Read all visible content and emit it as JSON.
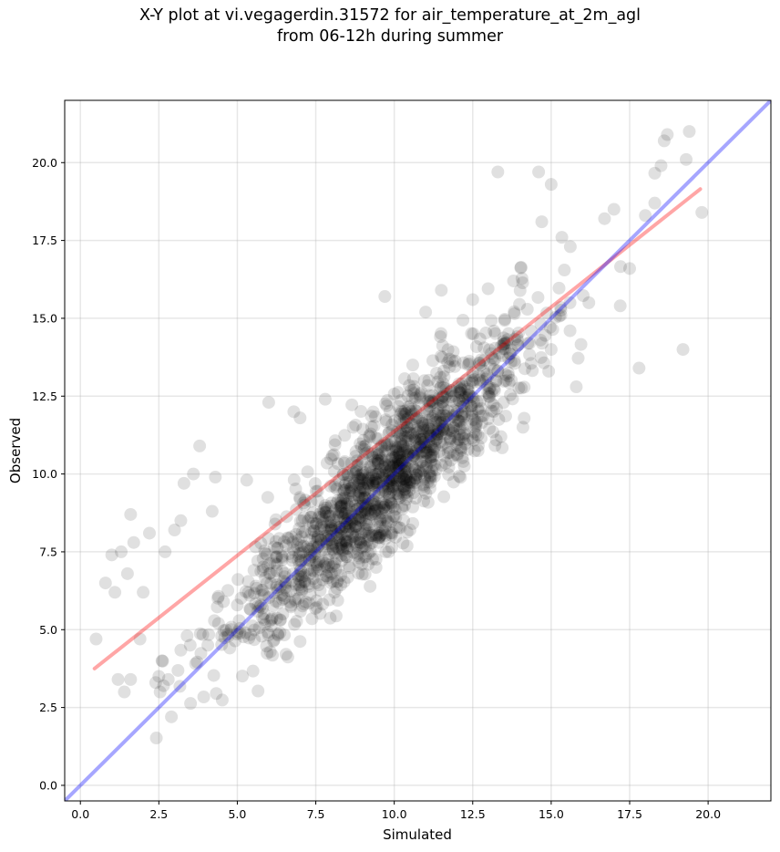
{
  "chart_data": {
    "type": "scatter",
    "title": "X-Y plot at vi.vegagerdin.31572 for air_temperature_at_2m_agl",
    "subtitle": "from 06-12h during summer",
    "xlabel": "Simulated",
    "ylabel": "Observed",
    "xlim": [
      -0.5,
      22
    ],
    "ylim": [
      -0.5,
      22
    ],
    "xticks": [
      "0.0",
      "2.5",
      "5.0",
      "7.5",
      "10.0",
      "12.5",
      "15.0",
      "17.5",
      "20.0"
    ],
    "yticks": [
      "0.0",
      "2.5",
      "5.0",
      "7.5",
      "10.0",
      "12.5",
      "15.0",
      "17.5",
      "20.0"
    ],
    "grid": true,
    "points_color": "#000000",
    "points_alpha": 0.12,
    "points_visible_sample": [
      [
        0.5,
        4.7
      ],
      [
        0.8,
        6.5
      ],
      [
        1.0,
        7.4
      ],
      [
        1.1,
        6.2
      ],
      [
        1.2,
        3.4
      ],
      [
        1.3,
        7.5
      ],
      [
        1.4,
        3.0
      ],
      [
        1.5,
        6.8
      ],
      [
        1.6,
        3.4
      ],
      [
        1.6,
        8.7
      ],
      [
        1.7,
        7.8
      ],
      [
        1.9,
        4.7
      ],
      [
        2.0,
        6.2
      ],
      [
        2.2,
        8.1
      ],
      [
        2.4,
        3.3
      ],
      [
        2.5,
        3.5
      ],
      [
        2.6,
        4.0
      ],
      [
        2.7,
        7.5
      ],
      [
        2.8,
        3.4
      ],
      [
        2.9,
        2.2
      ],
      [
        3.0,
        8.2
      ],
      [
        3.2,
        8.5
      ],
      [
        3.3,
        9.7
      ],
      [
        3.4,
        4.8
      ],
      [
        3.5,
        4.5
      ],
      [
        3.6,
        10.0
      ],
      [
        3.8,
        10.9
      ],
      [
        4.2,
        8.8
      ],
      [
        4.3,
        9.9
      ],
      [
        4.4,
        5.2
      ],
      [
        4.5,
        4.8
      ],
      [
        4.8,
        5.0
      ],
      [
        5.3,
        9.8
      ],
      [
        5.8,
        5.7
      ],
      [
        6.0,
        12.3
      ],
      [
        6.8,
        12.0
      ],
      [
        7.0,
        11.8
      ],
      [
        7.5,
        6.5
      ],
      [
        7.8,
        12.4
      ],
      [
        8.2,
        7.6
      ],
      [
        8.8,
        7.7
      ],
      [
        9.5,
        7.8
      ],
      [
        9.7,
        15.7
      ],
      [
        10.5,
        8.2
      ],
      [
        11.0,
        15.2
      ],
      [
        11.5,
        15.9
      ],
      [
        12.0,
        11.0
      ],
      [
        12.2,
        10.4
      ],
      [
        12.5,
        15.6
      ],
      [
        13.3,
        19.7
      ],
      [
        13.4,
        11.2
      ],
      [
        13.8,
        16.2
      ],
      [
        14.1,
        11.5
      ],
      [
        14.6,
        19.7
      ],
      [
        14.7,
        18.1
      ],
      [
        15.0,
        19.3
      ],
      [
        15.0,
        14.0
      ],
      [
        15.6,
        14.6
      ],
      [
        15.8,
        12.8
      ],
      [
        16.2,
        15.5
      ],
      [
        16.7,
        18.2
      ],
      [
        17.0,
        18.5
      ],
      [
        17.2,
        15.4
      ],
      [
        17.5,
        16.6
      ],
      [
        17.8,
        13.4
      ],
      [
        18.0,
        18.3
      ],
      [
        18.3,
        18.7
      ],
      [
        18.5,
        19.9
      ],
      [
        18.6,
        20.7
      ],
      [
        18.7,
        20.9
      ],
      [
        19.2,
        14.0
      ],
      [
        19.3,
        20.1
      ],
      [
        19.4,
        21.0
      ],
      [
        19.8,
        18.4
      ]
    ],
    "series": [
      {
        "type": "line",
        "color": "#ff0000",
        "alpha": 0.35,
        "x": [
          0.45,
          19.75
        ],
        "y": [
          3.75,
          19.15
        ]
      },
      {
        "type": "line",
        "color": "#0000ff",
        "alpha": 0.35,
        "x": [
          -0.5,
          22
        ],
        "y": [
          -0.5,
          22
        ]
      }
    ]
  }
}
